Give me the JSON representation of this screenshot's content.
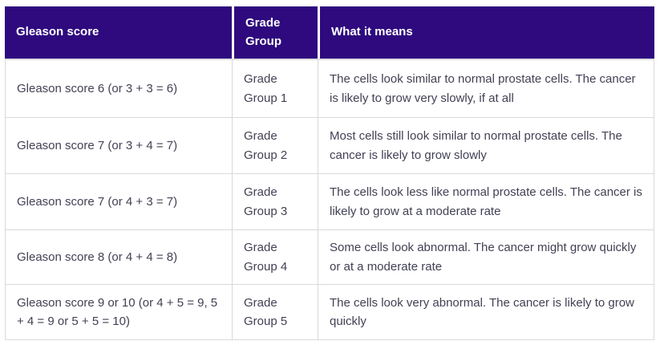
{
  "colors": {
    "header_background": "#2e0a7e",
    "header_text": "#ffffff",
    "body_text": "#414155",
    "cell_border": "#d9d9d9"
  },
  "table": {
    "columns": [
      {
        "label": "Gleason score"
      },
      {
        "label": "Grade Group"
      },
      {
        "label": "What it means"
      }
    ],
    "rows": [
      {
        "gleason": "Gleason score 6 (or 3 + 3 = 6)",
        "grade_group": "Grade Group 1",
        "meaning": "The cells look similar to normal prostate cells. The cancer is likely to grow very slowly, if at all"
      },
      {
        "gleason": "Gleason score 7 (or 3 + 4 = 7)",
        "grade_group": "Grade Group 2",
        "meaning": "Most cells still look similar to normal prostate cells. The cancer is likely to grow slowly"
      },
      {
        "gleason": "Gleason score 7 (or 4 + 3 = 7)",
        "grade_group": "Grade Group 3",
        "meaning": "The cells look less like normal prostate cells. The cancer is likely to grow at a moderate rate"
      },
      {
        "gleason": "Gleason score 8 (or 4 + 4 = 8)",
        "grade_group": "Grade Group 4",
        "meaning": "Some cells look abnormal. The cancer might grow quickly or at a moderate rate"
      },
      {
        "gleason": "Gleason score 9 or 10 (or 4 + 5 = 9, 5 + 4 = 9 or 5 + 5 = 10)",
        "grade_group": "Grade Group 5",
        "meaning": "The cells look very abnormal. The cancer is likely to grow quickly"
      }
    ]
  }
}
